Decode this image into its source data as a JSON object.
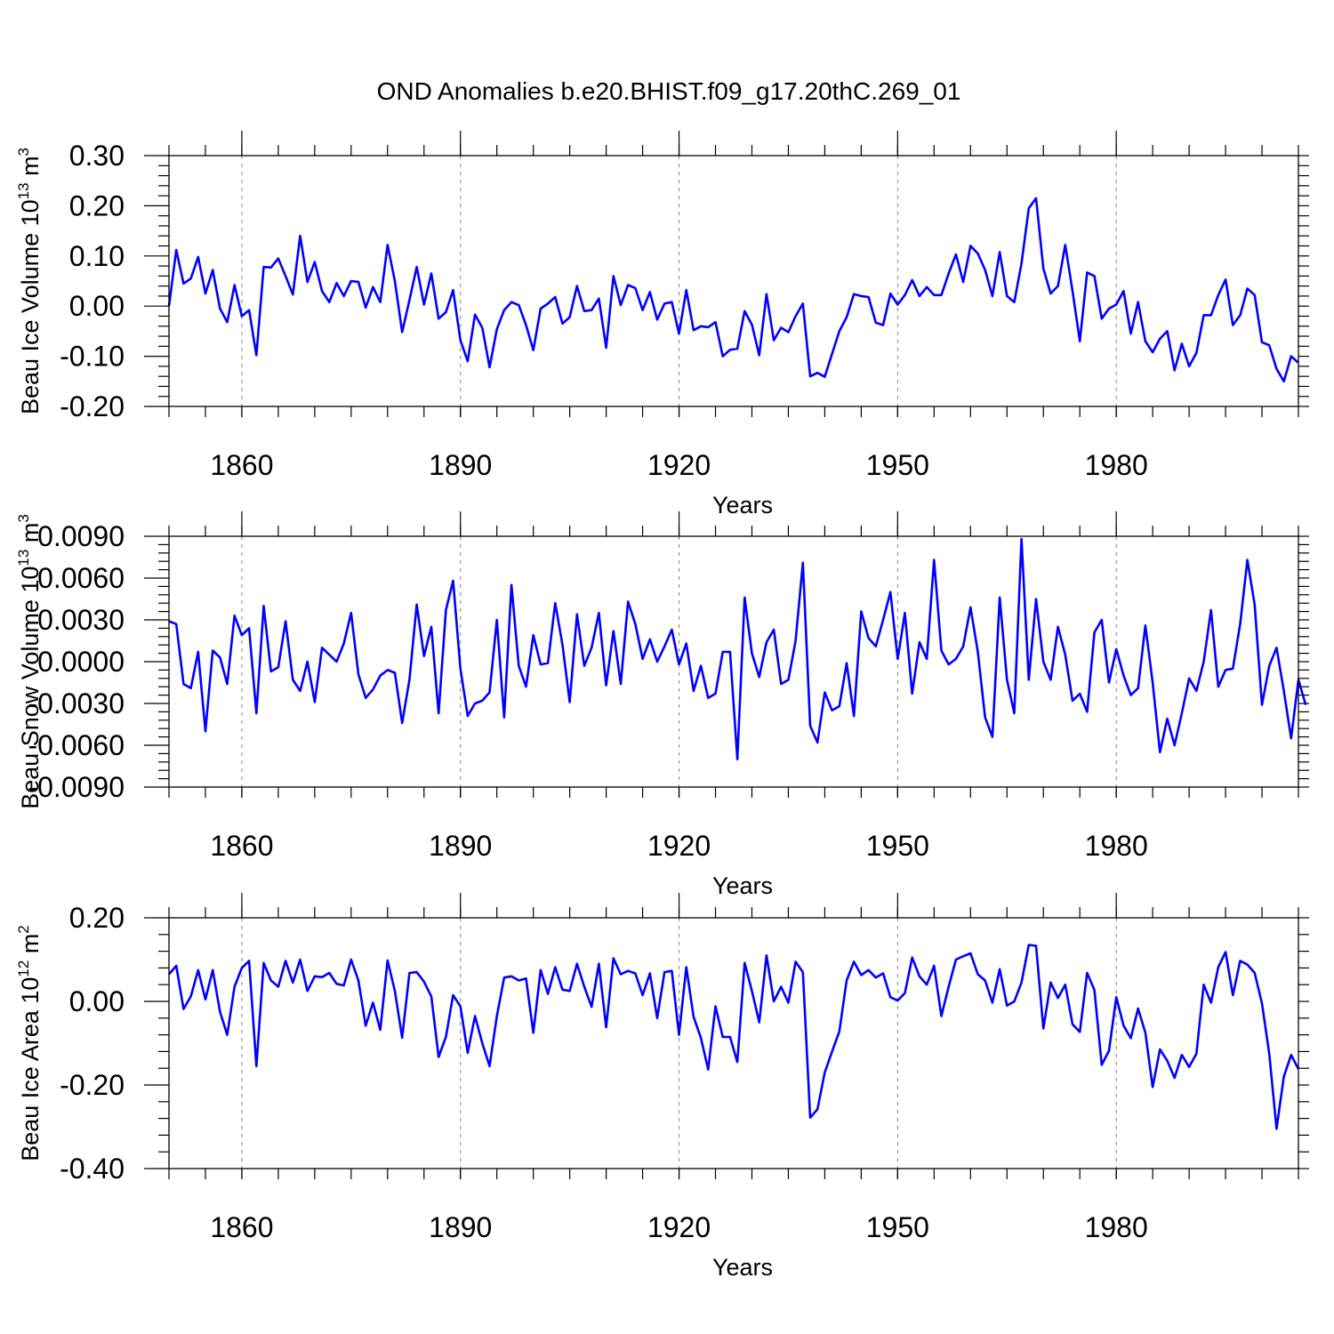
{
  "title": "OND Anomalies b.e20.BHIST.f09_g17.20thC.269_01",
  "colors": {
    "series": "#0000ff",
    "axis": "#000000",
    "grid": "#808080"
  },
  "chart_data": [
    {
      "type": "line",
      "ylabel": {
        "text": "Beau Ice Volume 10",
        "exp": "13",
        "unit": " m",
        "unit_exp": "3"
      },
      "xlabel": "Years",
      "xlim": [
        1850,
        2005
      ],
      "ylim": [
        -0.2,
        0.3
      ],
      "yticks": [
        -0.2,
        -0.1,
        0.0,
        0.1,
        0.2,
        0.3
      ],
      "ytick_labels": [
        "-0.20",
        "-0.10",
        "0.00",
        "0.10",
        "0.20",
        "0.30"
      ],
      "xticks": [
        1860,
        1890,
        1920,
        1950,
        1980
      ],
      "xtick_labels": [
        "1860",
        "1890",
        "1920",
        "1950",
        "1980"
      ],
      "x_start": 1850,
      "values": [
        0.0,
        0.112,
        0.045,
        0.055,
        0.098,
        0.025,
        0.072,
        -0.005,
        -0.032,
        0.042,
        -0.02,
        -0.008,
        -0.098,
        0.078,
        0.077,
        0.095,
        0.06,
        0.023,
        0.14,
        0.048,
        0.088,
        0.03,
        0.008,
        0.046,
        0.02,
        0.05,
        0.048,
        -0.003,
        0.038,
        0.008,
        0.122,
        0.05,
        -0.052,
        0.012,
        0.078,
        0.003,
        0.065,
        -0.025,
        -0.012,
        0.032,
        -0.068,
        -0.11,
        -0.017,
        -0.043,
        -0.122,
        -0.046,
        -0.008,
        0.008,
        0.002,
        -0.038,
        -0.088,
        -0.005,
        0.005,
        0.018,
        -0.035,
        -0.022,
        0.04,
        -0.01,
        -0.008,
        0.015,
        -0.083,
        0.06,
        0.002,
        0.042,
        0.036,
        -0.008,
        0.028,
        -0.027,
        0.005,
        0.008,
        -0.055,
        0.032,
        -0.048,
        -0.04,
        -0.042,
        -0.032,
        -0.1,
        -0.087,
        -0.085,
        -0.01,
        -0.037,
        -0.098,
        0.024,
        -0.068,
        -0.043,
        -0.052,
        -0.02,
        0.005,
        -0.14,
        -0.133,
        -0.141,
        -0.095,
        -0.05,
        -0.022,
        0.024,
        0.02,
        0.018,
        -0.033,
        -0.038,
        0.025,
        0.003,
        0.022,
        0.052,
        0.02,
        0.038,
        0.022,
        0.022,
        0.065,
        0.103,
        0.048,
        0.12,
        0.105,
        0.072,
        0.02,
        0.108,
        0.02,
        0.008,
        0.085,
        0.195,
        0.215,
        0.075,
        0.025,
        0.04,
        0.122,
        0.03,
        -0.07,
        0.067,
        0.06,
        -0.025,
        -0.005,
        0.003,
        0.03,
        -0.055,
        0.008,
        -0.07,
        -0.092,
        -0.065,
        -0.05,
        -0.128,
        -0.075,
        -0.12,
        -0.093,
        -0.018,
        -0.018,
        0.022,
        0.053,
        -0.038,
        -0.018,
        0.035,
        0.022,
        -0.072,
        -0.078,
        -0.125,
        -0.15,
        -0.1,
        -0.113
      ]
    },
    {
      "type": "line",
      "ylabel": {
        "text": "Beau Snow Volume 10",
        "exp": "13",
        "unit": " m",
        "unit_exp": "3"
      },
      "xlabel": "Years",
      "xlim": [
        1850,
        2005
      ],
      "ylim": [
        -0.009,
        0.009
      ],
      "yticks": [
        -0.009,
        -0.006,
        -0.003,
        0.0,
        0.003,
        0.006,
        0.009
      ],
      "ytick_labels": [
        "-0.0090",
        "-0.0060",
        "-0.0030",
        "0.0000",
        "0.0030",
        "0.0060",
        "0.0090"
      ],
      "xticks": [
        1860,
        1890,
        1920,
        1950,
        1980
      ],
      "xtick_labels": [
        "1860",
        "1890",
        "1920",
        "1950",
        "1980"
      ],
      "x_start": 1850,
      "values": [
        0.0029,
        0.0027,
        -0.0016,
        -0.0019,
        0.0007,
        -0.005,
        0.0008,
        0.0003,
        -0.0016,
        0.0033,
        0.0019,
        0.0024,
        -0.0037,
        0.004,
        -0.0007,
        -0.0004,
        0.0029,
        -0.0013,
        -0.0021,
        0.0,
        -0.0029,
        0.001,
        0.0005,
        0.0,
        0.0013,
        0.0035,
        -0.0009,
        -0.0026,
        -0.002,
        -0.001,
        -0.0006,
        -0.0008,
        -0.0044,
        -0.0013,
        0.0041,
        0.0004,
        0.0025,
        -0.0037,
        0.0037,
        0.0058,
        -0.0005,
        -0.0039,
        -0.003,
        -0.0028,
        -0.0022,
        0.003,
        -0.004,
        0.0055,
        -0.0003,
        -0.0018,
        0.0019,
        -0.0002,
        -0.0001,
        0.0042,
        0.0012,
        -0.0029,
        0.0034,
        -0.0003,
        0.001,
        0.0035,
        -0.0017,
        0.0022,
        -0.0016,
        0.0043,
        0.0027,
        0.0002,
        0.0016,
        0.0,
        0.0011,
        0.0023,
        -0.0002,
        0.0013,
        -0.0021,
        -0.0003,
        -0.0026,
        -0.0023,
        0.0007,
        0.0007,
        -0.007,
        0.0046,
        0.0006,
        -0.0011,
        0.0014,
        0.0023,
        -0.0016,
        -0.0013,
        0.0015,
        0.0071,
        -0.0046,
        -0.0058,
        -0.0022,
        -0.0035,
        -0.0032,
        -0.0001,
        -0.0039,
        0.0036,
        0.0017,
        0.0011,
        0.003,
        0.005,
        0.0002,
        0.0035,
        -0.0023,
        0.0014,
        0.0002,
        0.0073,
        0.0008,
        -0.0002,
        0.0002,
        0.0011,
        0.0039,
        0.0007,
        -0.004,
        -0.0054,
        0.0046,
        -0.0013,
        -0.0037,
        0.0088,
        -0.0013,
        0.0045,
        0.0,
        -0.0013,
        0.0025,
        0.0005,
        -0.0028,
        -0.0023,
        -0.0036,
        0.0021,
        0.003,
        -0.0015,
        0.0009,
        -0.001,
        -0.0024,
        -0.0019,
        0.0026,
        -0.0015,
        -0.0065,
        -0.0041,
        -0.006,
        -0.0037,
        -0.0012,
        -0.0021,
        0.0,
        0.0037,
        -0.0018,
        -0.0006,
        -0.0005,
        0.0027,
        0.0073,
        0.0041,
        -0.0031,
        -0.0003,
        0.001,
        -0.0021,
        -0.0055,
        -0.0013,
        -0.0031
      ]
    },
    {
      "type": "line",
      "ylabel": {
        "text": "Beau Ice Area 10",
        "exp": "12",
        "unit": " m",
        "unit_exp": "2"
      },
      "xlabel": "Years",
      "xlim": [
        1850,
        2005
      ],
      "ylim": [
        -0.4,
        0.2
      ],
      "yticks": [
        -0.4,
        -0.2,
        0.0,
        0.2
      ],
      "ytick_labels": [
        "-0.40",
        "-0.20",
        "0.00",
        "0.20"
      ],
      "xticks": [
        1860,
        1890,
        1920,
        1950,
        1980
      ],
      "xtick_labels": [
        "1860",
        "1890",
        "1920",
        "1950",
        "1980"
      ],
      "x_start": 1850,
      "values": [
        0.065,
        0.085,
        -0.018,
        0.012,
        0.075,
        0.005,
        0.075,
        -0.025,
        -0.08,
        0.035,
        0.08,
        0.097,
        -0.155,
        0.092,
        0.05,
        0.035,
        0.097,
        0.045,
        0.1,
        0.025,
        0.06,
        0.058,
        0.068,
        0.042,
        0.038,
        0.1,
        0.05,
        -0.058,
        -0.003,
        -0.068,
        0.098,
        0.025,
        -0.087,
        0.068,
        0.07,
        0.047,
        0.012,
        -0.133,
        -0.085,
        0.015,
        -0.012,
        -0.123,
        -0.035,
        -0.1,
        -0.155,
        -0.035,
        0.057,
        0.06,
        0.05,
        0.055,
        -0.075,
        0.075,
        0.018,
        0.082,
        0.028,
        0.025,
        0.09,
        0.035,
        -0.013,
        0.09,
        -0.062,
        0.103,
        0.065,
        0.073,
        0.067,
        0.015,
        0.067,
        -0.04,
        0.07,
        0.073,
        -0.08,
        0.082,
        -0.037,
        -0.087,
        -0.163,
        -0.012,
        -0.085,
        -0.085,
        -0.145,
        0.092,
        0.025,
        -0.05,
        0.11,
        0.0,
        0.035,
        -0.003,
        0.095,
        0.07,
        -0.278,
        -0.258,
        -0.17,
        -0.12,
        -0.072,
        0.05,
        0.095,
        0.063,
        0.075,
        0.057,
        0.067,
        0.01,
        0.002,
        0.02,
        0.105,
        0.06,
        0.04,
        0.085,
        -0.035,
        0.035,
        0.1,
        0.108,
        0.115,
        0.065,
        0.05,
        -0.003,
        0.077,
        -0.01,
        0.0,
        0.045,
        0.135,
        0.133,
        -0.065,
        0.045,
        0.008,
        0.04,
        -0.055,
        -0.073,
        0.068,
        0.027,
        -0.152,
        -0.118,
        0.01,
        -0.058,
        -0.088,
        -0.017,
        -0.075,
        -0.205,
        -0.115,
        -0.142,
        -0.183,
        -0.128,
        -0.157,
        -0.125,
        0.04,
        -0.003,
        0.082,
        0.118,
        0.015,
        0.097,
        0.088,
        0.068,
        -0.005,
        -0.125,
        -0.305,
        -0.18,
        -0.128,
        -0.162
      ]
    }
  ]
}
